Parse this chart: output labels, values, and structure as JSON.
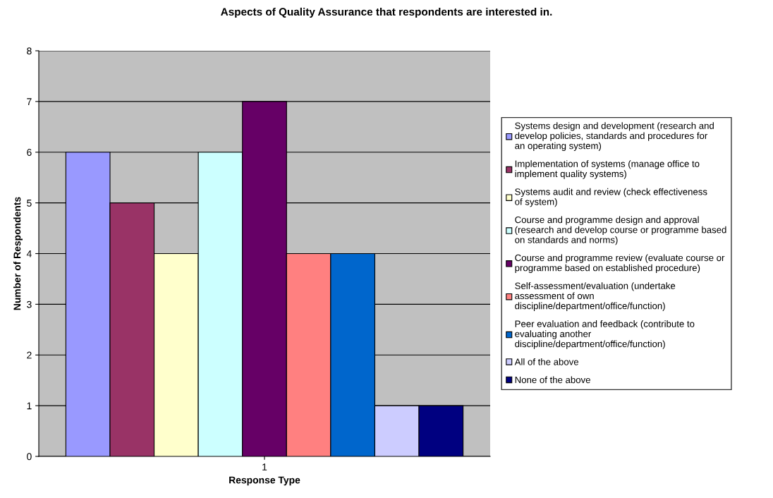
{
  "chart_data": {
    "type": "bar",
    "title": "Aspects of Quality Assurance that respondents are interested in.",
    "xlabel": "Response Type",
    "ylabel": "Number of Respondents",
    "categories": [
      "1"
    ],
    "series": [
      {
        "name": "Systems design and development (research and develop policies, standards and procedures for an operating system)",
        "color": "#9999ff",
        "values": [
          6
        ]
      },
      {
        "name": "Implementation of systems (manage office to implement quality systems)",
        "color": "#993366",
        "values": [
          5
        ]
      },
      {
        "name": "Systems audit and review (check effectiveness of system)",
        "color": "#ffffcc",
        "values": [
          4
        ]
      },
      {
        "name": "Course and programme design and approval (research and develop course or programme based on standards and norms)",
        "color": "#ccffff",
        "values": [
          6
        ]
      },
      {
        "name": "Course and programme review (evaluate course or programme based on established procedure)",
        "color": "#660066",
        "values": [
          7
        ]
      },
      {
        "name": "Self-assessment/evaluation (undertake assessment of own discipline/department/office/function)",
        "color": "#ff8080",
        "values": [
          4
        ]
      },
      {
        "name": "Peer evaluation and feedback (contribute to evaluating another discipline/department/office/function)",
        "color": "#0066cc",
        "values": [
          4
        ]
      },
      {
        "name": "All of the above",
        "color": "#ccccff",
        "values": [
          1
        ]
      },
      {
        "name": "None of the above",
        "color": "#000080",
        "values": [
          1
        ]
      }
    ],
    "ylim": [
      0,
      8
    ],
    "yticks": [
      0,
      1,
      2,
      3,
      4,
      5,
      6,
      7,
      8
    ],
    "grid": "y",
    "legend": "right"
  }
}
